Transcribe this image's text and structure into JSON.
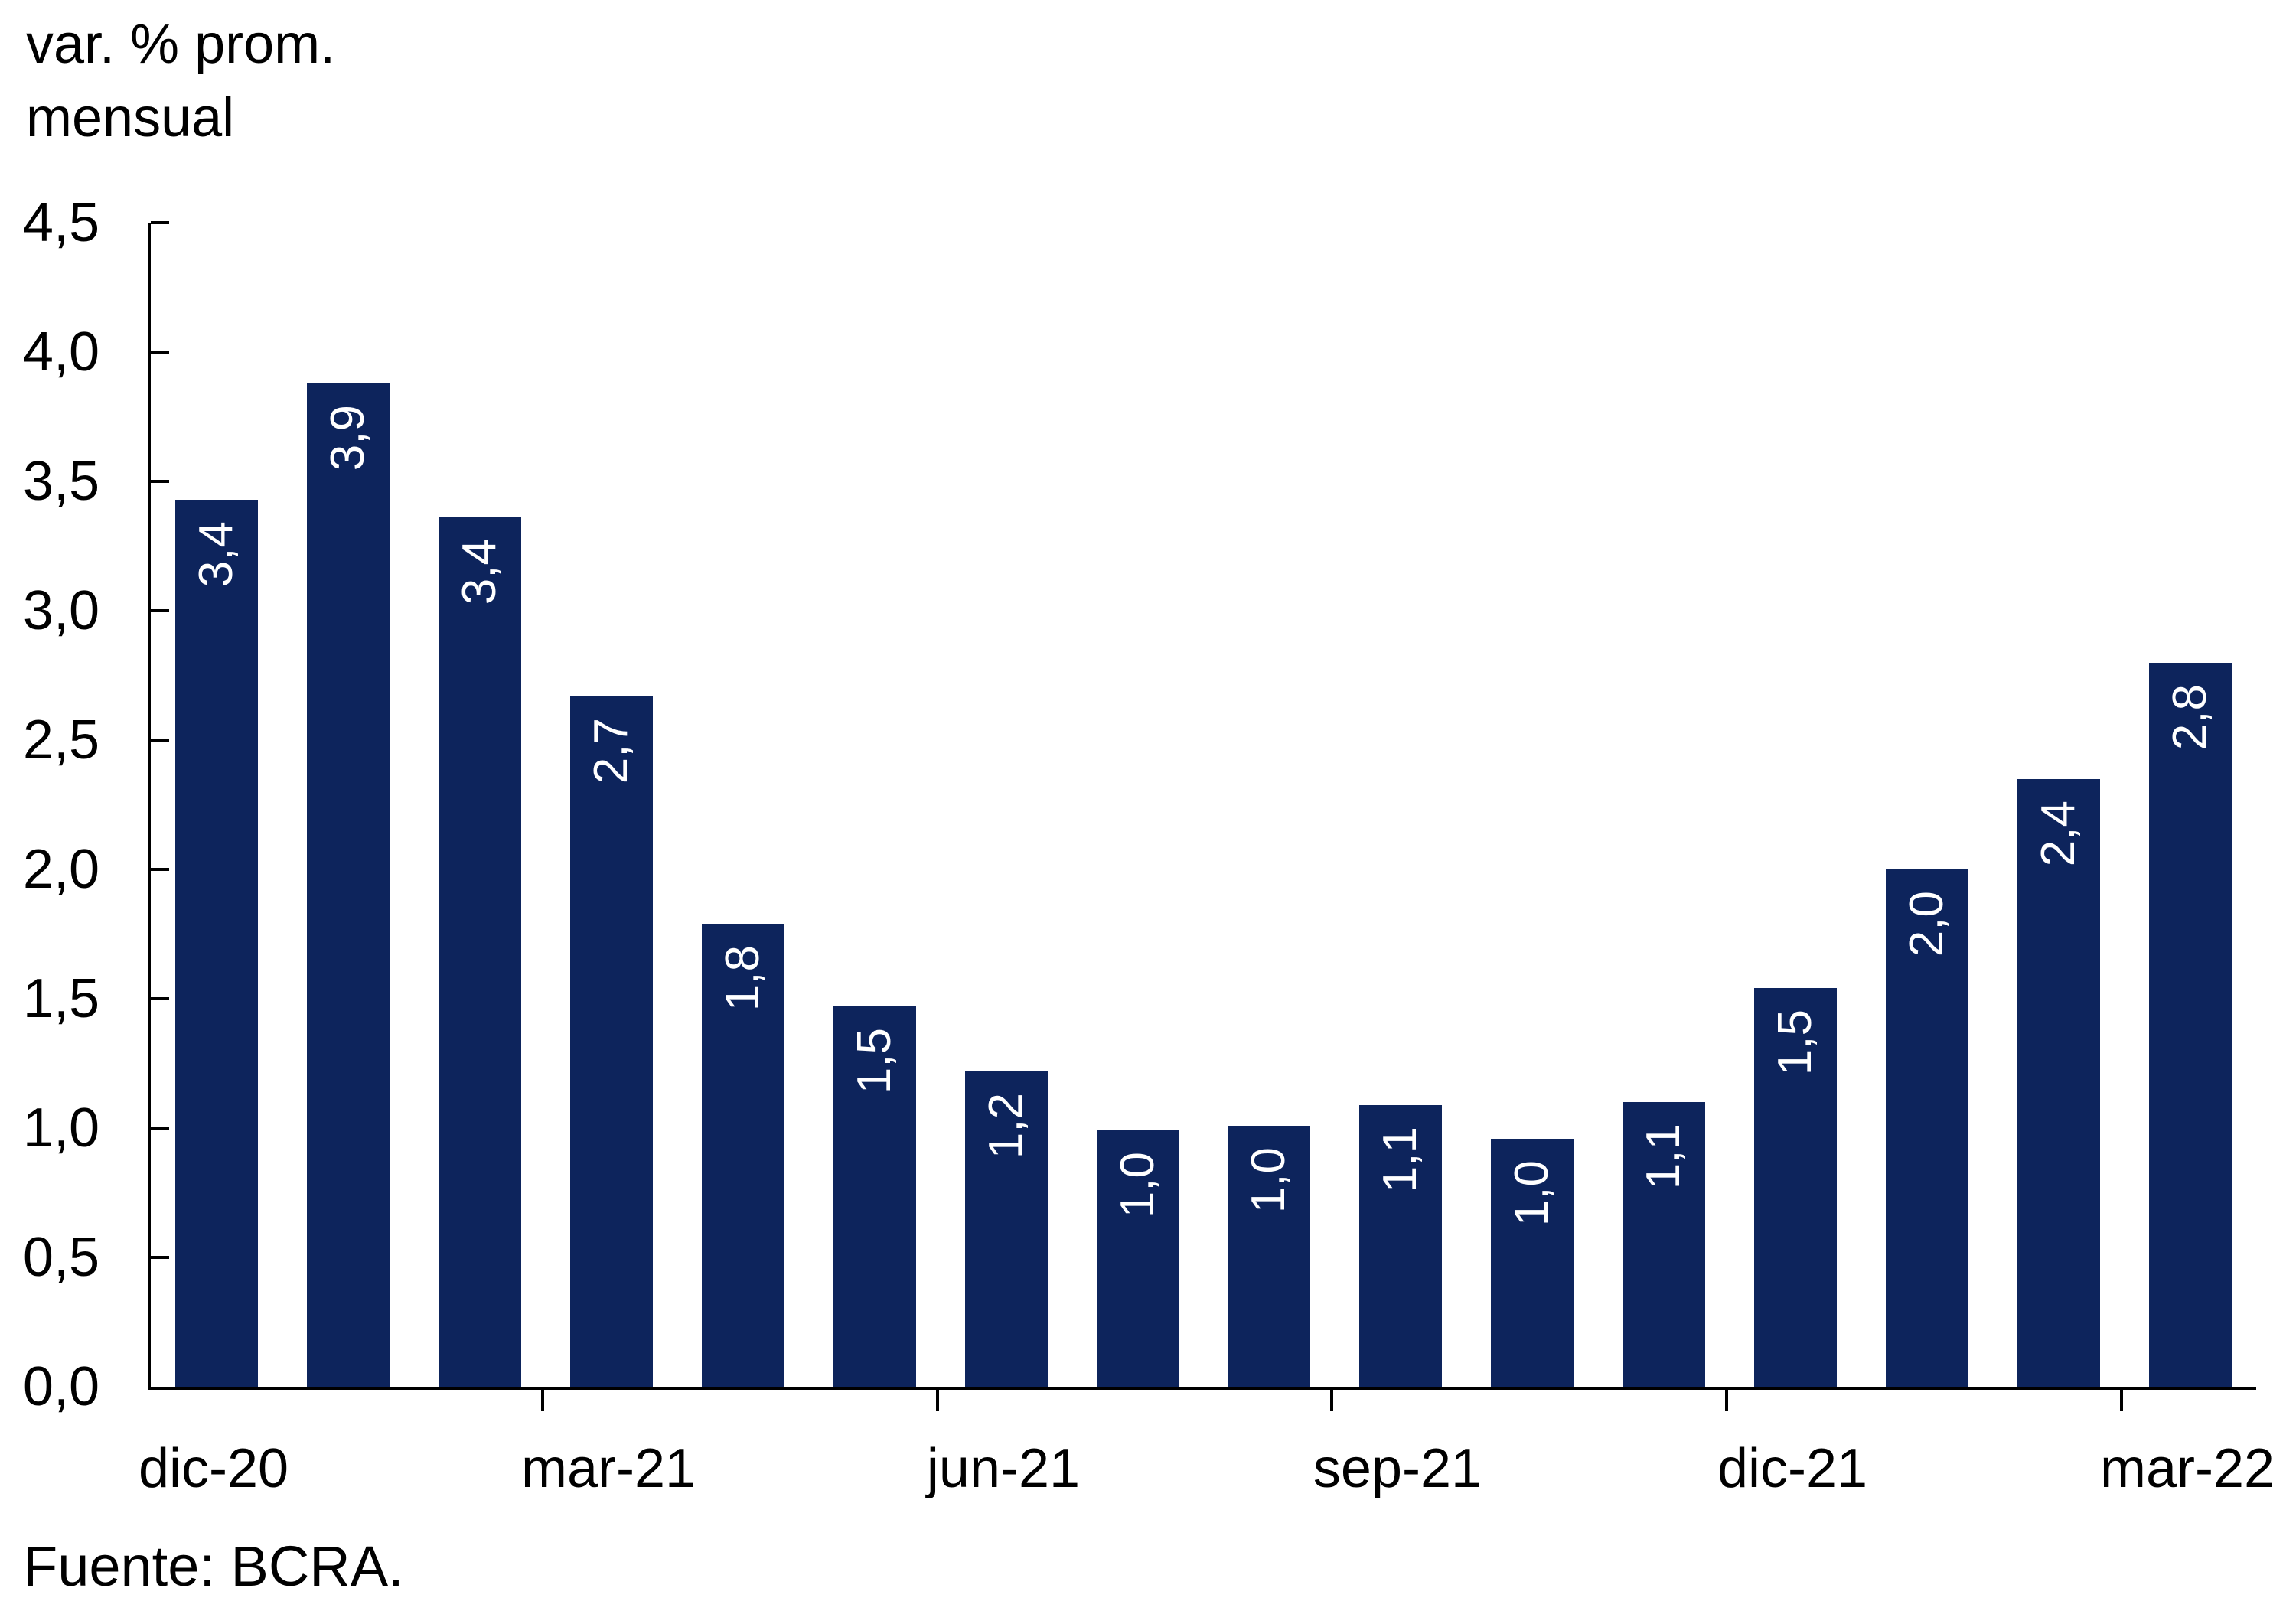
{
  "title": {
    "line1": "var. % prom.",
    "line2": "mensual"
  },
  "source": "Fuente: BCRA.",
  "colors": {
    "bar": "#0d245c",
    "axis": "#000000",
    "bar_label_text": "#ffffff",
    "text": "#000000",
    "background": "#ffffff"
  },
  "chart_data": {
    "type": "bar",
    "title": "var. % prom. mensual",
    "ylabel": "var. % prom. mensual",
    "xlabel": "",
    "ylim": [
      0,
      4.5
    ],
    "grid": false,
    "legend": false,
    "y_ticks": [
      {
        "value": 0.0,
        "label": "0,0"
      },
      {
        "value": 0.5,
        "label": "0,5"
      },
      {
        "value": 1.0,
        "label": "1,0"
      },
      {
        "value": 1.5,
        "label": "1,5"
      },
      {
        "value": 2.0,
        "label": "2,0"
      },
      {
        "value": 2.5,
        "label": "2,5"
      },
      {
        "value": 3.0,
        "label": "3,0"
      },
      {
        "value": 3.5,
        "label": "3,5"
      },
      {
        "value": 4.0,
        "label": "4,0"
      },
      {
        "value": 4.5,
        "label": "4,5"
      }
    ],
    "bars": [
      {
        "label": "3,4",
        "value": 3.4,
        "height": 3.43
      },
      {
        "label": "3,9",
        "value": 3.9,
        "height": 3.88
      },
      {
        "label": "3,4",
        "value": 3.4,
        "height": 3.36
      },
      {
        "label": "2,7",
        "value": 2.7,
        "height": 2.67
      },
      {
        "label": "1,8",
        "value": 1.8,
        "height": 1.79
      },
      {
        "label": "1,5",
        "value": 1.5,
        "height": 1.47
      },
      {
        "label": "1,2",
        "value": 1.2,
        "height": 1.22
      },
      {
        "label": "1,0",
        "value": 1.0,
        "height": 0.99
      },
      {
        "label": "1,0",
        "value": 1.0,
        "height": 1.01
      },
      {
        "label": "1,1",
        "value": 1.1,
        "height": 1.09
      },
      {
        "label": "1,0",
        "value": 1.0,
        "height": 0.96
      },
      {
        "label": "1,1",
        "value": 1.1,
        "height": 1.1
      },
      {
        "label": "1,5",
        "value": 1.5,
        "height": 1.54
      },
      {
        "label": "2,0",
        "value": 2.0,
        "height": 2.0
      },
      {
        "label": "2,4",
        "value": 2.4,
        "height": 2.35
      },
      {
        "label": "2,8",
        "value": 2.8,
        "height": 2.8
      }
    ],
    "x_axis": {
      "tick_labels": [
        "dic-20",
        "mar-21",
        "jun-21",
        "sep-21",
        "dic-21",
        "mar-22"
      ],
      "tick_bar_indices": [
        0,
        3,
        6,
        9,
        12,
        15
      ],
      "boundary_tick_indices": [
        3,
        6,
        9,
        12,
        15
      ]
    }
  }
}
